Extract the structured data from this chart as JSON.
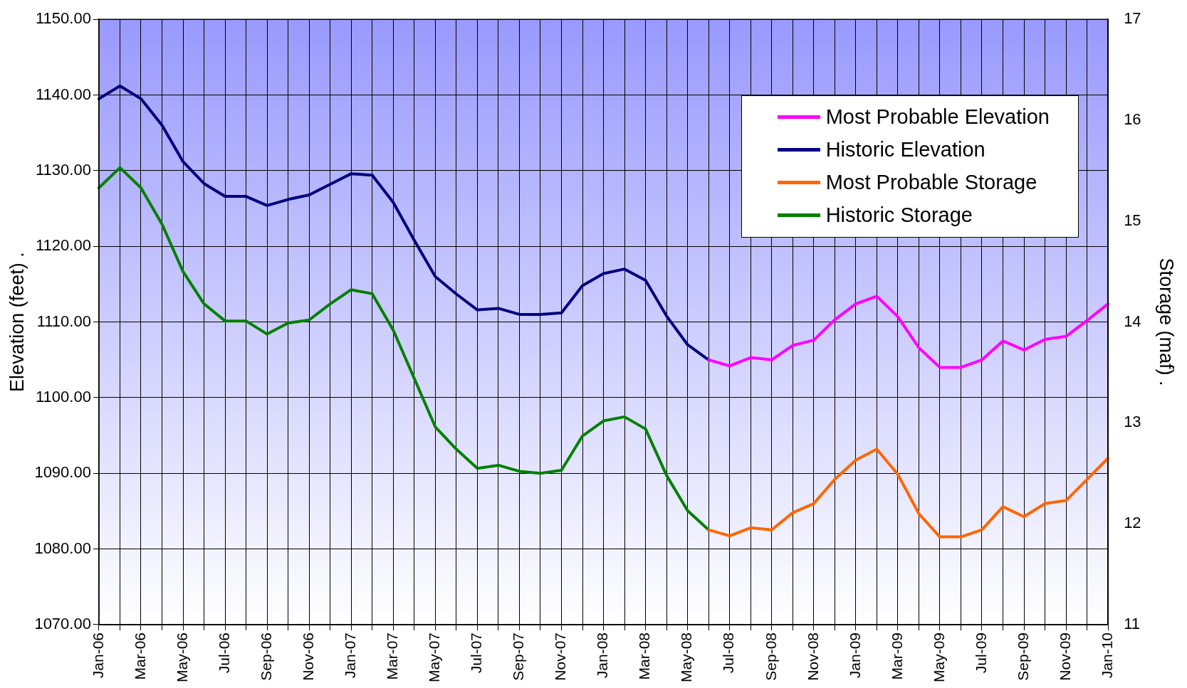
{
  "chart_data": {
    "type": "line",
    "ylabel": "Elevation (feet) .",
    "y2label": "Storage (maf) .",
    "categories": [
      "Jan-06",
      null,
      "Mar-06",
      null,
      "May-06",
      null,
      "Jul-06",
      null,
      "Sep-06",
      null,
      "Nov-06",
      null,
      "Jan-07",
      null,
      "Mar-07",
      null,
      "May-07",
      null,
      "Jul-07",
      null,
      "Sep-07",
      null,
      "Nov-07",
      null,
      "Jan-08",
      null,
      "Mar-08",
      null,
      "May-08",
      null,
      "Jul-08",
      null,
      "Sep-08",
      null,
      "Nov-08",
      null,
      "Jan-09",
      null,
      "Mar-09",
      null,
      "May-09",
      null,
      "Jul-09",
      null,
      "Sep-09",
      null,
      "Nov-09",
      null,
      "Jan-10"
    ],
    "series": [
      {
        "name": "Most Probable Elevation",
        "color": "#ff00ff",
        "values": [
          null,
          null,
          null,
          null,
          null,
          null,
          null,
          null,
          null,
          null,
          null,
          null,
          null,
          null,
          null,
          null,
          null,
          null,
          null,
          null,
          null,
          null,
          null,
          null,
          null,
          null,
          null,
          null,
          null,
          1105.0,
          1104.2,
          1105.3,
          1105.0,
          1106.9,
          1107.6,
          1110.3,
          1112.4,
          1113.4,
          1110.7,
          1106.6,
          1104.0,
          1104.0,
          1105.0,
          1107.5,
          1106.3,
          1107.7,
          1108.1,
          1110.2,
          1112.4
        ]
      },
      {
        "name": "Historic Elevation",
        "color": "#000080",
        "values": [
          1139.5,
          1141.2,
          1139.5,
          1136.0,
          1131.2,
          1128.3,
          1126.6,
          1126.6,
          1125.4,
          1126.2,
          1126.8,
          1128.2,
          1129.6,
          1129.4,
          1125.8,
          1120.8,
          1116.0,
          1113.7,
          1111.6,
          1111.8,
          1111.0,
          1111.0,
          1111.2,
          1114.8,
          1116.4,
          1117.0,
          1115.5,
          1110.8,
          1107.0,
          1105.0,
          null,
          null,
          null,
          null,
          null,
          null,
          null,
          null,
          null,
          null,
          null,
          null,
          null,
          null,
          null,
          null,
          null,
          null,
          null
        ]
      },
      {
        "name": "Most Probable Storage",
        "color": "#ff6600",
        "axis": "y2",
        "values": [
          null,
          null,
          null,
          null,
          null,
          null,
          null,
          null,
          null,
          null,
          null,
          null,
          null,
          null,
          null,
          null,
          null,
          null,
          null,
          null,
          null,
          null,
          null,
          null,
          null,
          null,
          null,
          null,
          null,
          11.94,
          11.88,
          11.96,
          11.94,
          12.11,
          12.2,
          12.44,
          12.63,
          12.74,
          12.49,
          12.1,
          11.87,
          11.87,
          11.94,
          12.17,
          12.07,
          12.2,
          12.23,
          12.44,
          12.65
        ]
      },
      {
        "name": "Historic Storage",
        "color": "#008000",
        "axis": "y2",
        "values": [
          15.33,
          15.53,
          15.33,
          14.97,
          14.5,
          14.18,
          14.01,
          14.01,
          13.88,
          13.99,
          14.02,
          14.18,
          14.32,
          14.28,
          13.92,
          13.44,
          12.96,
          12.74,
          12.55,
          12.58,
          12.52,
          12.5,
          12.53,
          12.87,
          13.02,
          13.06,
          12.94,
          12.48,
          12.13,
          11.94,
          null,
          null,
          null,
          null,
          null,
          null,
          null,
          null,
          null,
          null,
          null,
          null,
          null,
          null,
          null,
          null,
          null,
          null,
          null
        ]
      }
    ],
    "ylim": [
      1070,
      1150
    ],
    "yticks": [
      {
        "value": 1070,
        "label": "1070.00"
      },
      {
        "value": 1080,
        "label": "1080.00"
      },
      {
        "value": 1090,
        "label": "1090.00"
      },
      {
        "value": 1100,
        "label": "1100.00"
      },
      {
        "value": 1110,
        "label": "1110.00"
      },
      {
        "value": 1120,
        "label": "1120.00"
      },
      {
        "value": 1130,
        "label": "1130.00"
      },
      {
        "value": 1140,
        "label": "1140.00"
      },
      {
        "value": 1150,
        "label": "1150.00"
      }
    ],
    "y2lim": [
      11,
      17
    ],
    "y2ticks": [
      11,
      12,
      13,
      14,
      15,
      16,
      17
    ],
    "grid": true,
    "legend": "top right",
    "marker": "none",
    "line_style": "solid"
  }
}
